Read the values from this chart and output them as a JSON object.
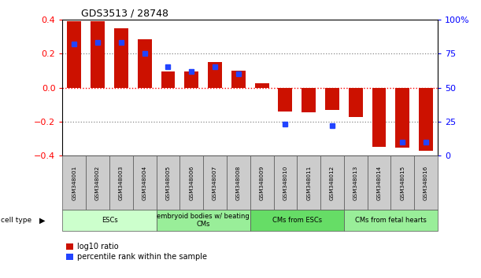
{
  "title": "GDS3513 / 28748",
  "samples": [
    "GSM348001",
    "GSM348002",
    "GSM348003",
    "GSM348004",
    "GSM348005",
    "GSM348006",
    "GSM348007",
    "GSM348008",
    "GSM348009",
    "GSM348010",
    "GSM348011",
    "GSM348012",
    "GSM348013",
    "GSM348014",
    "GSM348015",
    "GSM348016"
  ],
  "log10_ratio": [
    0.39,
    0.39,
    0.35,
    0.285,
    0.095,
    0.095,
    0.15,
    0.1,
    0.025,
    -0.14,
    -0.145,
    -0.13,
    -0.175,
    -0.35,
    -0.355,
    -0.37
  ],
  "percentile_rank": [
    82,
    83,
    83,
    75,
    65,
    62,
    65,
    60,
    null,
    23,
    null,
    22,
    null,
    null,
    10,
    10
  ],
  "cell_type_groups": [
    {
      "label": "ESCs",
      "start": 0,
      "end": 3,
      "color": "#ccffcc"
    },
    {
      "label": "embryoid bodies w/ beating\nCMs",
      "start": 4,
      "end": 7,
      "color": "#99ee99"
    },
    {
      "label": "CMs from ESCs",
      "start": 8,
      "end": 11,
      "color": "#66dd66"
    },
    {
      "label": "CMs from fetal hearts",
      "start": 12,
      "end": 15,
      "color": "#99ee99"
    }
  ],
  "bar_color_red": "#cc1100",
  "bar_color_blue": "#2244ff",
  "ylim_left": [
    -0.4,
    0.4
  ],
  "ylim_right": [
    0,
    100
  ],
  "yticks_left": [
    -0.4,
    -0.2,
    0.0,
    0.2,
    0.4
  ],
  "yticks_right": [
    0,
    25,
    50,
    75,
    100
  ],
  "sample_box_color": "#cccccc",
  "fig_width": 6.11,
  "fig_height": 3.54,
  "dpi": 100
}
